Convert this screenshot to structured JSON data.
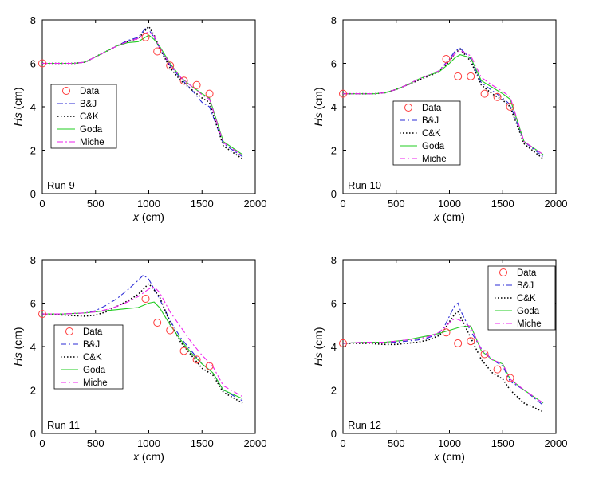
{
  "colors": {
    "data": "#ff3b3b",
    "bj": "#2b2bd6",
    "ck": "#000000",
    "goda": "#22cc22",
    "miche": "#ee22ee"
  },
  "chart_data": [
    {
      "type": "line",
      "run_label": "Run 9",
      "xlabel_var": "x",
      "xlabel_unit": " (cm)",
      "ylabel_var": "Hs",
      "ylabel_unit": " (cm)",
      "xlim": [
        0,
        2000
      ],
      "ylim": [
        0,
        8
      ],
      "xticks": [
        0,
        500,
        1000,
        1500,
        2000
      ],
      "yticks": [
        0,
        2,
        4,
        6,
        8
      ],
      "legend_position": "left-middle",
      "data_points": {
        "name": "Data",
        "x": [
          0,
          970,
          1080,
          1200,
          1330,
          1450,
          1570
        ],
        "y": [
          6.0,
          7.2,
          6.55,
          5.9,
          5.2,
          5.0,
          4.6
        ]
      },
      "series": [
        {
          "name": "B&J",
          "key": "bj",
          "x": [
            0,
            300,
            400,
            500,
            600,
            700,
            800,
            900,
            950,
            980,
            1000,
            1050,
            1100,
            1200,
            1300,
            1400,
            1500,
            1570,
            1700,
            1880
          ],
          "y": [
            6.0,
            6.0,
            6.05,
            6.3,
            6.55,
            6.8,
            7.05,
            7.2,
            7.5,
            7.65,
            7.55,
            7.2,
            6.7,
            5.9,
            5.3,
            4.8,
            4.2,
            4.0,
            2.3,
            1.7
          ]
        },
        {
          "name": "C&K",
          "key": "ck",
          "x": [
            0,
            300,
            400,
            500,
            600,
            700,
            800,
            900,
            950,
            980,
            1000,
            1050,
            1100,
            1200,
            1300,
            1400,
            1500,
            1570,
            1700,
            1880
          ],
          "y": [
            6.0,
            6.0,
            6.05,
            6.3,
            6.55,
            6.8,
            7.0,
            7.15,
            7.4,
            7.6,
            7.7,
            7.3,
            6.7,
            5.8,
            5.2,
            4.8,
            4.4,
            4.2,
            2.2,
            1.6
          ]
        },
        {
          "name": "Goda",
          "key": "goda",
          "x": [
            0,
            300,
            400,
            500,
            600,
            700,
            800,
            900,
            1000,
            1050,
            1100,
            1200,
            1300,
            1400,
            1500,
            1570,
            1700,
            1880
          ],
          "y": [
            6.0,
            6.0,
            6.05,
            6.3,
            6.55,
            6.8,
            6.95,
            7.0,
            7.3,
            7.1,
            6.8,
            6.0,
            5.35,
            4.95,
            4.6,
            4.4,
            2.4,
            1.8
          ]
        },
        {
          "name": "Miche",
          "key": "miche",
          "x": [
            0,
            300,
            400,
            500,
            600,
            700,
            800,
            900,
            950,
            1000,
            1050,
            1100,
            1200,
            1300,
            1400,
            1500,
            1570,
            1700,
            1880
          ],
          "y": [
            6.0,
            6.0,
            6.05,
            6.3,
            6.55,
            6.8,
            7.0,
            7.15,
            7.35,
            7.45,
            7.25,
            6.75,
            5.95,
            5.35,
            4.95,
            4.55,
            4.35,
            2.35,
            1.75
          ]
        }
      ]
    },
    {
      "type": "line",
      "run_label": "Run 10",
      "xlabel_var": "x",
      "xlabel_unit": " (cm)",
      "ylabel_var": "Hs",
      "ylabel_unit": " (cm)",
      "xlim": [
        0,
        2000
      ],
      "ylim": [
        0,
        8
      ],
      "xticks": [
        0,
        500,
        1000,
        1500,
        2000
      ],
      "yticks": [
        0,
        2,
        4,
        6,
        8
      ],
      "legend_position": "bottom-middle",
      "data_points": {
        "name": "Data",
        "x": [
          0,
          970,
          1080,
          1200,
          1330,
          1450,
          1570
        ],
        "y": [
          4.6,
          6.2,
          5.4,
          5.4,
          4.6,
          4.45,
          4.0
        ]
      },
      "series": [
        {
          "name": "B&J",
          "key": "bj",
          "x": [
            0,
            300,
            400,
            500,
            600,
            700,
            800,
            900,
            1000,
            1050,
            1100,
            1200,
            1300,
            1400,
            1500,
            1570,
            1700,
            1880
          ],
          "y": [
            4.6,
            4.6,
            4.65,
            4.8,
            5.0,
            5.25,
            5.45,
            5.65,
            6.2,
            6.55,
            6.7,
            6.2,
            5.1,
            4.75,
            4.4,
            4.1,
            2.4,
            1.7
          ]
        },
        {
          "name": "C&K",
          "key": "ck",
          "x": [
            0,
            300,
            400,
            500,
            600,
            700,
            800,
            900,
            1000,
            1050,
            1100,
            1200,
            1300,
            1400,
            1500,
            1570,
            1700,
            1880
          ],
          "y": [
            4.6,
            4.6,
            4.65,
            4.8,
            5.0,
            5.2,
            5.4,
            5.6,
            6.1,
            6.45,
            6.65,
            6.1,
            5.0,
            4.6,
            4.3,
            4.0,
            2.3,
            1.6
          ]
        },
        {
          "name": "Goda",
          "key": "goda",
          "x": [
            0,
            300,
            400,
            500,
            600,
            700,
            800,
            900,
            1000,
            1050,
            1100,
            1200,
            1300,
            1400,
            1500,
            1570,
            1700,
            1880
          ],
          "y": [
            4.6,
            4.6,
            4.65,
            4.8,
            5.0,
            5.25,
            5.45,
            5.6,
            6.0,
            6.25,
            6.4,
            6.25,
            5.2,
            4.9,
            4.6,
            4.35,
            2.4,
            1.8
          ]
        },
        {
          "name": "Miche",
          "key": "miche",
          "x": [
            0,
            300,
            400,
            500,
            600,
            700,
            800,
            900,
            1000,
            1050,
            1100,
            1200,
            1300,
            1400,
            1500,
            1570,
            1700,
            1880
          ],
          "y": [
            4.6,
            4.6,
            4.65,
            4.8,
            5.0,
            5.25,
            5.45,
            5.65,
            6.15,
            6.45,
            6.6,
            6.35,
            5.35,
            5.0,
            4.7,
            4.45,
            2.4,
            1.8
          ]
        }
      ]
    },
    {
      "type": "line",
      "run_label": "Run 11",
      "xlabel_var": "x",
      "xlabel_unit": " (cm)",
      "ylabel_var": "Hs",
      "ylabel_unit": " (cm)",
      "xlim": [
        0,
        2000
      ],
      "ylim": [
        0,
        8
      ],
      "xticks": [
        0,
        500,
        1000,
        1500,
        2000
      ],
      "yticks": [
        0,
        2,
        4,
        6,
        8
      ],
      "legend_position": "left-middle",
      "data_points": {
        "name": "Data",
        "x": [
          0,
          970,
          1080,
          1200,
          1330,
          1450,
          1570
        ],
        "y": [
          5.5,
          6.2,
          5.1,
          4.75,
          3.8,
          3.4,
          3.1
        ]
      },
      "series": [
        {
          "name": "B&J",
          "key": "bj",
          "x": [
            0,
            200,
            400,
            500,
            600,
            700,
            800,
            900,
            950,
            1000,
            1100,
            1200,
            1300,
            1400,
            1500,
            1600,
            1700,
            1880
          ],
          "y": [
            5.5,
            5.5,
            5.55,
            5.65,
            5.9,
            6.2,
            6.6,
            7.05,
            7.3,
            7.1,
            6.2,
            5.2,
            4.4,
            3.8,
            3.2,
            2.8,
            2.0,
            1.5
          ]
        },
        {
          "name": "C&K",
          "key": "ck",
          "x": [
            0,
            200,
            400,
            500,
            600,
            700,
            800,
            900,
            950,
            1000,
            1050,
            1100,
            1200,
            1300,
            1400,
            1500,
            1600,
            1700,
            1880
          ],
          "y": [
            5.5,
            5.45,
            5.4,
            5.45,
            5.6,
            5.85,
            6.1,
            6.4,
            6.65,
            6.9,
            6.6,
            6.3,
            5.1,
            4.2,
            3.6,
            3.0,
            2.7,
            1.9,
            1.4
          ]
        },
        {
          "name": "Goda",
          "key": "goda",
          "x": [
            0,
            200,
            400,
            500,
            600,
            700,
            800,
            900,
            1000,
            1050,
            1100,
            1200,
            1300,
            1400,
            1500,
            1600,
            1700,
            1880
          ],
          "y": [
            5.5,
            5.5,
            5.55,
            5.6,
            5.65,
            5.7,
            5.75,
            5.8,
            6.0,
            6.05,
            5.8,
            5.0,
            4.3,
            3.7,
            3.2,
            2.8,
            2.0,
            1.6
          ]
        },
        {
          "name": "Miche",
          "key": "miche",
          "x": [
            0,
            200,
            400,
            500,
            600,
            700,
            800,
            900,
            1000,
            1050,
            1100,
            1200,
            1300,
            1400,
            1500,
            1600,
            1700,
            1880
          ],
          "y": [
            5.5,
            5.5,
            5.55,
            5.6,
            5.7,
            5.85,
            6.05,
            6.3,
            6.65,
            6.75,
            6.5,
            5.6,
            4.9,
            4.2,
            3.6,
            3.1,
            2.2,
            1.7
          ]
        }
      ]
    },
    {
      "type": "line",
      "run_label": "Run 12",
      "xlabel_var": "x",
      "xlabel_unit": " (cm)",
      "ylabel_var": "Hs",
      "ylabel_unit": " (cm)",
      "xlim": [
        0,
        2000
      ],
      "ylim": [
        0,
        8
      ],
      "xticks": [
        0,
        500,
        1000,
        1500,
        2000
      ],
      "yticks": [
        0,
        2,
        4,
        6,
        8
      ],
      "legend_position": "top-right",
      "data_points": {
        "name": "Data",
        "x": [
          0,
          970,
          1080,
          1200,
          1330,
          1450,
          1570
        ],
        "y": [
          4.15,
          4.65,
          4.15,
          4.25,
          3.65,
          2.95,
          2.55
        ]
      },
      "series": [
        {
          "name": "B&J",
          "key": "bj",
          "x": [
            0,
            200,
            400,
            500,
            600,
            700,
            800,
            900,
            950,
            1000,
            1050,
            1080,
            1100,
            1200,
            1300,
            1400,
            1500,
            1570,
            1700,
            1880
          ],
          "y": [
            4.15,
            4.2,
            4.2,
            4.2,
            4.25,
            4.3,
            4.4,
            4.6,
            4.9,
            5.4,
            5.9,
            6.0,
            5.7,
            4.7,
            3.9,
            3.4,
            3.1,
            2.4,
            2.0,
            1.3
          ]
        },
        {
          "name": "C&K",
          "key": "ck",
          "x": [
            0,
            200,
            400,
            500,
            600,
            700,
            800,
            900,
            950,
            1000,
            1050,
            1080,
            1100,
            1200,
            1300,
            1400,
            1500,
            1570,
            1700,
            1880
          ],
          "y": [
            4.15,
            4.15,
            4.1,
            4.1,
            4.15,
            4.2,
            4.3,
            4.5,
            4.75,
            5.15,
            5.5,
            5.6,
            5.4,
            4.4,
            3.4,
            2.8,
            2.5,
            2.0,
            1.4,
            1.0
          ]
        },
        {
          "name": "Goda",
          "key": "goda",
          "x": [
            0,
            200,
            400,
            500,
            600,
            700,
            800,
            900,
            1000,
            1100,
            1200,
            1300,
            1400,
            1500,
            1570,
            1700,
            1880
          ],
          "y": [
            4.15,
            4.2,
            4.2,
            4.25,
            4.3,
            4.4,
            4.5,
            4.6,
            4.75,
            4.9,
            4.95,
            3.8,
            3.4,
            3.2,
            2.5,
            2.0,
            1.4
          ]
        },
        {
          "name": "Miche",
          "key": "miche",
          "x": [
            0,
            200,
            400,
            500,
            600,
            700,
            800,
            900,
            950,
            1000,
            1050,
            1100,
            1200,
            1300,
            1400,
            1500,
            1570,
            1700,
            1880
          ],
          "y": [
            4.15,
            4.2,
            4.2,
            4.25,
            4.3,
            4.35,
            4.45,
            4.65,
            4.85,
            5.1,
            5.3,
            5.2,
            4.9,
            3.85,
            3.4,
            3.2,
            2.5,
            2.0,
            1.4
          ]
        }
      ]
    }
  ]
}
